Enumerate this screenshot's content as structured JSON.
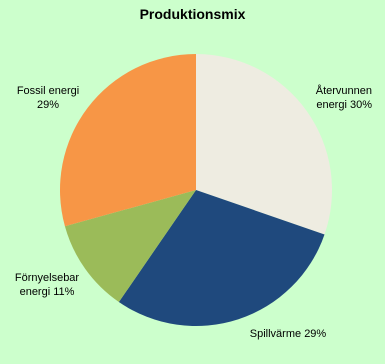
{
  "chart_data": {
    "type": "pie",
    "title": "Produktionsmix",
    "categories": [
      "Återvunnen energi",
      "Spillvärme",
      "Förnyelsebar energi",
      "Fossil energi"
    ],
    "values": [
      30,
      29,
      11,
      29
    ],
    "value_labels": [
      "30%",
      "29%",
      "11%",
      "29%"
    ],
    "colors": [
      "#eeece1",
      "#1f497d",
      "#9bbb59",
      "#f79646"
    ]
  }
}
